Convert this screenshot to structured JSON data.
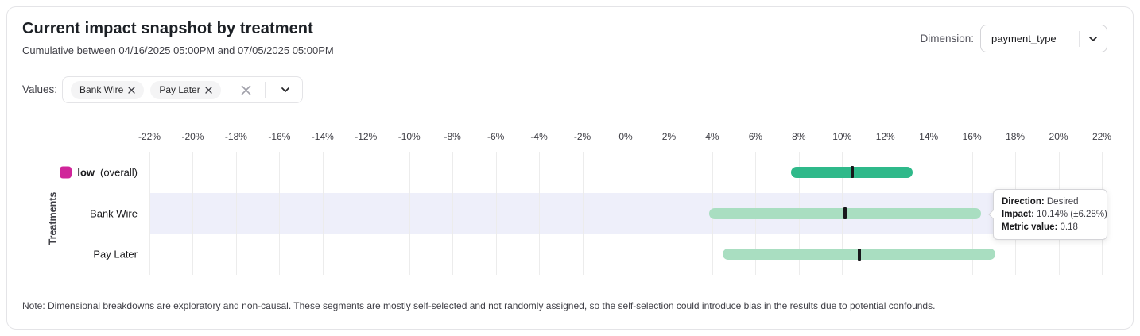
{
  "header": {
    "title": "Current impact snapshot by treatment",
    "subtitle": "Cumulative between 04/16/2025 05:00PM and 07/05/2025 05:00PM",
    "dimension_label": "Dimension:",
    "dimension_value": "payment_type"
  },
  "values": {
    "label": "Values:",
    "chips": [
      {
        "label": "Bank Wire"
      },
      {
        "label": "Pay Later"
      }
    ]
  },
  "chart_data": {
    "type": "bar",
    "orientation": "horizontal",
    "title": "Current impact snapshot by treatment",
    "ylabel": "Treatments",
    "xlim": [
      -22,
      22
    ],
    "grid": true,
    "tick_labels": [
      "-22%",
      "-20%",
      "-18%",
      "-16%",
      "-14%",
      "-12%",
      "-10%",
      "-8%",
      "-6%",
      "-4%",
      "-2%",
      "0%",
      "2%",
      "4%",
      "6%",
      "8%",
      "10%",
      "12%",
      "14%",
      "16%",
      "18%",
      "20%",
      "22%"
    ],
    "rows": [
      {
        "label": "low",
        "label_suffix": "(overall)",
        "swatch_color": "#d0259a",
        "impact_pct": 10.45,
        "margin_pct": 2.8,
        "bar_color": "#2fb98a",
        "highlighted": false
      },
      {
        "label": "Bank Wire",
        "label_suffix": "",
        "swatch_color": "",
        "impact_pct": 10.14,
        "margin_pct": 6.28,
        "bar_color": "#a9dec1",
        "highlighted": true
      },
      {
        "label": "Pay Later",
        "label_suffix": "",
        "swatch_color": "",
        "impact_pct": 10.79,
        "margin_pct": 6.3,
        "bar_color": "#a9dec1",
        "highlighted": false
      }
    ]
  },
  "tooltip": {
    "lines": [
      {
        "label": "Direction:",
        "value": "Desired"
      },
      {
        "label": "Impact:",
        "value": "10.14% (±6.28%)"
      },
      {
        "label": "Metric value:",
        "value": "0.18"
      }
    ]
  },
  "note": "Note: Dimensional breakdowns are exploratory and non-causal. These segments are mostly self-selected and not randomly assigned, so the self-selection could introduce bias in the results due to potential confounds.",
  "colors": {
    "overall_bar": "#2fb98a",
    "segment_bar": "#a9dec1",
    "legend_swatch": "#d0259a",
    "highlight_band": "#eeeffa",
    "marker": "#18181b",
    "gridline": "#ececec",
    "zero_line": "#71717a",
    "card_border": "#e4e4e7"
  }
}
